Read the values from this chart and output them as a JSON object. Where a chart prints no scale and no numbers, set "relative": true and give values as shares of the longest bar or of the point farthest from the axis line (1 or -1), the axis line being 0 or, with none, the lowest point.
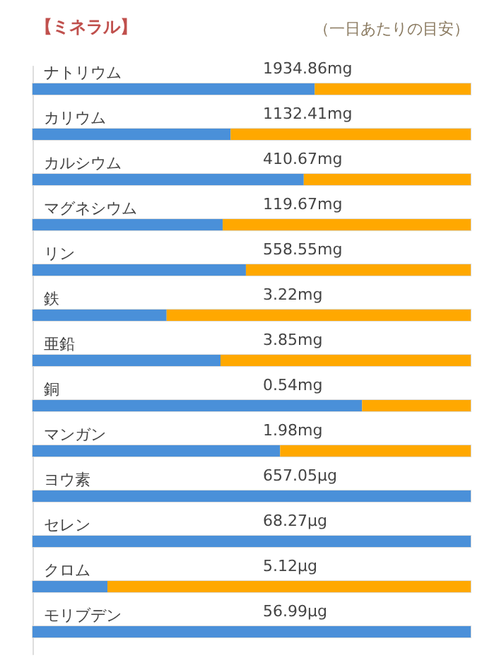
{
  "chart_data": {
    "type": "bar",
    "orientation": "horizontal",
    "stacked": true,
    "relative": true,
    "title": "【ミネラル】",
    "subtitle": "（一日あたりの目安）",
    "categories": [
      "ナトリウム",
      "カリウム",
      "カルシウム",
      "マグネシウム",
      "リン",
      "鉄",
      "亜鉛",
      "銅",
      "マンガン",
      "ヨウ素",
      "セレン",
      "クロム",
      "モリブデン"
    ],
    "annotations": [
      "1934.86mg",
      "1132.41mg",
      "410.67mg",
      "119.67mg",
      "558.55mg",
      "3.22mg",
      "3.85mg",
      "0.54mg",
      "1.98mg",
      "657.05µg",
      "68.27µg",
      "5.12µg",
      "56.99µg"
    ],
    "series": [
      {
        "color": "#4a90d9",
        "values": [
          0.644,
          0.452,
          0.619,
          0.434,
          0.487,
          0.306,
          0.429,
          0.752,
          0.565,
          1,
          1,
          0.171,
          1
        ]
      },
      {
        "color": "#ffa800",
        "values": [
          0.356,
          0.548,
          0.381,
          0.566,
          0.513,
          0.694,
          0.571,
          0.248,
          0.435,
          0,
          0,
          0.829,
          0
        ]
      }
    ]
  }
}
